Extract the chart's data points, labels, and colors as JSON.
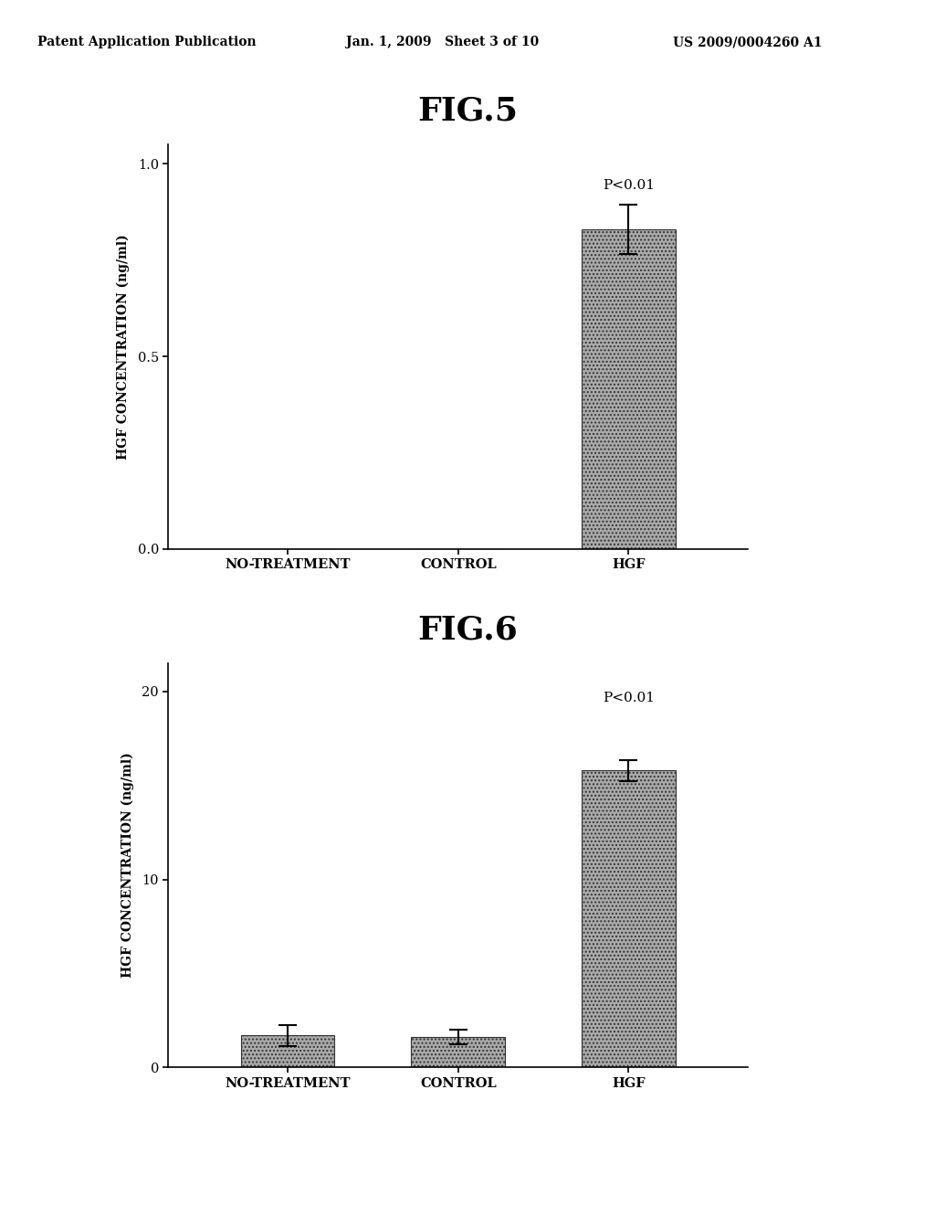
{
  "header_left": "Patent Application Publication",
  "header_mid": "Jan. 1, 2009   Sheet 3 of 10",
  "header_right": "US 2009/0004260 A1",
  "fig5": {
    "title": "FIG.5",
    "categories": [
      "NO-TREATMENT",
      "CONTROL",
      "HGF"
    ],
    "values": [
      0.0,
      0.0,
      0.83
    ],
    "errors": [
      0.0,
      0.0,
      0.065
    ],
    "ylabel": "HGF CONCENTRATION (ng/ml)",
    "yticks": [
      0.0,
      0.5,
      1.0
    ],
    "yticklabels": [
      "0.0",
      "0.5",
      "1.0"
    ],
    "ylim": [
      0.0,
      1.05
    ],
    "pvalue_text": "P<0.01",
    "bar_color": "#aaaaaa",
    "bar_width": 0.55,
    "bar_edge_color": "#333333"
  },
  "fig6": {
    "title": "FIG.6",
    "categories": [
      "NO-TREATMENT",
      "CONTROL",
      "HGF"
    ],
    "values": [
      1.7,
      1.6,
      15.8
    ],
    "errors": [
      0.55,
      0.38,
      0.55
    ],
    "ylabel": "HGF CONCENTRATION (ng/ml)",
    "yticks": [
      0,
      10,
      20
    ],
    "yticklabels": [
      "0",
      "10",
      "20"
    ],
    "ylim": [
      0,
      21.5
    ],
    "pvalue_text": "P<0.01",
    "bar_color": "#aaaaaa",
    "bar_width": 0.55,
    "bar_edge_color": "#333333"
  },
  "background_color": "#ffffff",
  "font_color": "#000000"
}
